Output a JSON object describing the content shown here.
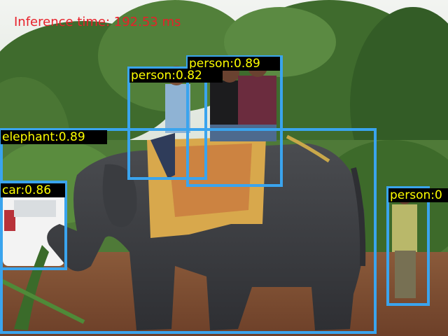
{
  "overlay": {
    "inference_text": "Inference time: 192.53 ms",
    "colors": {
      "box": "#3aa4ee",
      "label_bg": "#000000",
      "label_text": "#ffff00",
      "inference_text": "#e8202a"
    }
  },
  "detections": [
    {
      "label": "person:0.89"
    },
    {
      "label": "person:0.82"
    },
    {
      "label": "elephant:0.89"
    },
    {
      "label": "car:0.86"
    },
    {
      "label": "person:0"
    }
  ]
}
